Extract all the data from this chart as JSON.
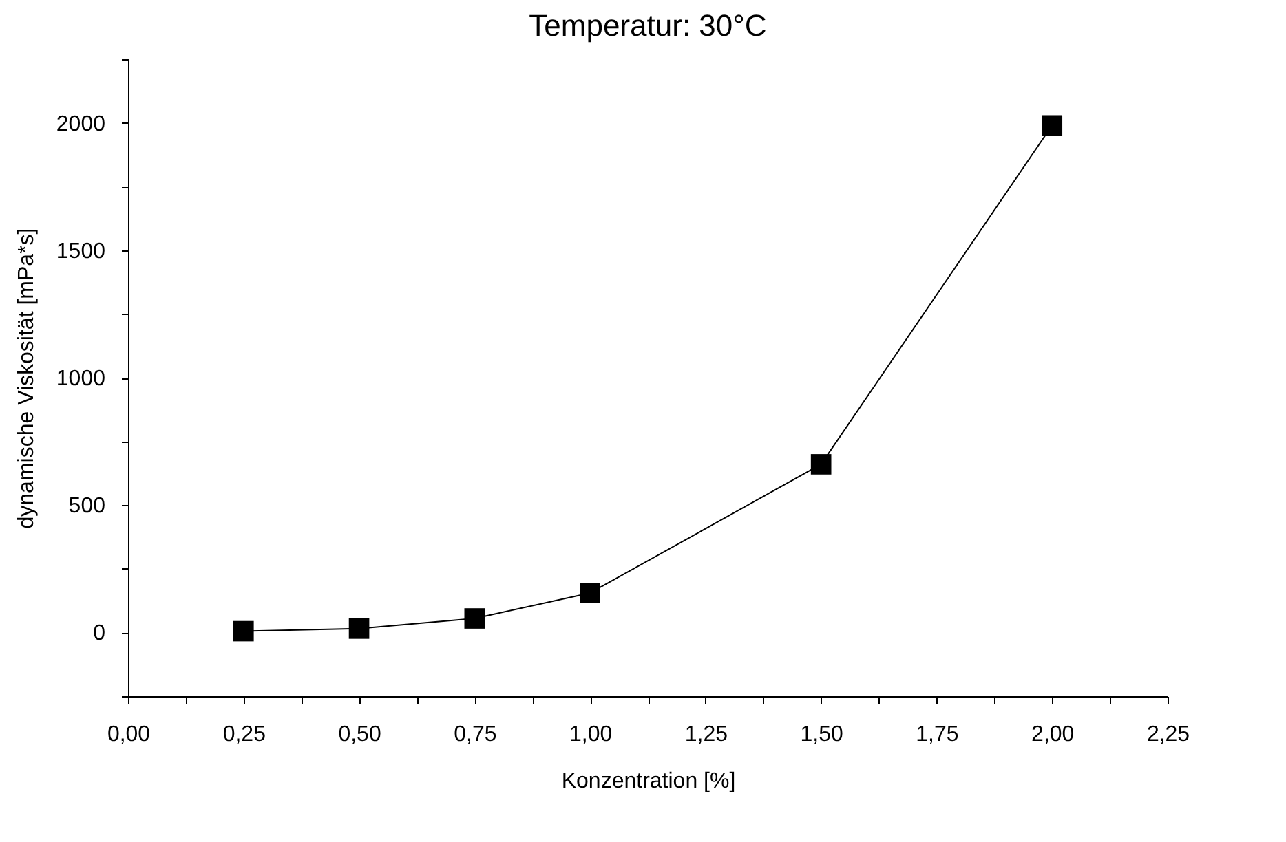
{
  "chart_data": {
    "type": "line",
    "title": "Temperatur: 30°C",
    "xlabel": "Konzentration [%]",
    "ylabel": "dynamische Viskosität [mPa*s]",
    "x": [
      0.25,
      0.5,
      0.75,
      1.0,
      1.5,
      2.0
    ],
    "series": [
      {
        "color": "#000000",
        "values": [
          5,
          15,
          55,
          155,
          660,
          1990
        ]
      }
    ],
    "marker": "square",
    "grid": false,
    "xlim": [
      0,
      2.25
    ],
    "xticks": [
      {
        "value": 0,
        "label": "0,00"
      },
      {
        "value": 0.125,
        "label": null
      },
      {
        "value": 0.25,
        "label": "0,25"
      },
      {
        "value": 0.375,
        "label": null
      },
      {
        "value": 0.5,
        "label": "0,50"
      },
      {
        "value": 0.625,
        "label": null
      },
      {
        "value": 0.75,
        "label": "0,75"
      },
      {
        "value": 0.875,
        "label": null
      },
      {
        "value": 1,
        "label": "1,00"
      },
      {
        "value": 1.125,
        "label": null
      },
      {
        "value": 1.25,
        "label": "1,25"
      },
      {
        "value": 1.375,
        "label": null
      },
      {
        "value": 1.5,
        "label": "1,50"
      },
      {
        "value": 1.625,
        "label": null
      },
      {
        "value": 1.75,
        "label": "1,75"
      },
      {
        "value": 1.875,
        "label": null
      },
      {
        "value": 2,
        "label": "2,00"
      },
      {
        "value": 2.125,
        "label": null
      },
      {
        "value": 2.25,
        "label": "2,25"
      }
    ],
    "ylim": [
      -250,
      2250
    ],
    "yticks": [
      {
        "value": -250,
        "label": null
      },
      0,
      {
        "value": 250,
        "label": null
      },
      500,
      {
        "value": 750,
        "label": null
      },
      1000,
      {
        "value": 1250,
        "label": null
      },
      1500,
      {
        "value": 1750,
        "label": null
      },
      2000,
      {
        "value": 2250,
        "label": null
      }
    ]
  }
}
